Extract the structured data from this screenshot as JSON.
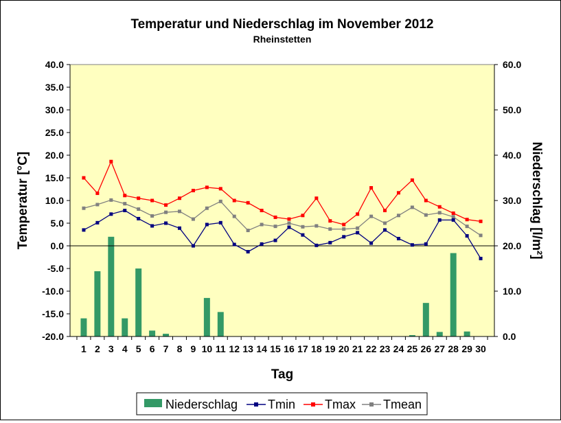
{
  "chart_data": {
    "type": "bar+line",
    "title": "Temperatur und Niederschlag im November 2012",
    "subtitle": "Rheinstetten",
    "xlabel": "Tag",
    "ylabel_left": "Temperatur [°C]",
    "ylabel_right": "Niederschlag [l/m²]",
    "categories": [
      1,
      2,
      3,
      4,
      5,
      6,
      7,
      8,
      9,
      10,
      11,
      12,
      13,
      14,
      15,
      16,
      17,
      18,
      19,
      20,
      21,
      22,
      23,
      24,
      25,
      26,
      27,
      28,
      29,
      30
    ],
    "y_left": {
      "min": -20,
      "max": 40,
      "ticks": [
        "-20.0",
        "-15.0",
        "-10.0",
        "-5.0",
        "0.0",
        "5.0",
        "10.0",
        "15.0",
        "20.0",
        "25.0",
        "30.0",
        "35.0",
        "40.0"
      ]
    },
    "y_right": {
      "min": 0,
      "max": 60,
      "ticks": [
        "0.0",
        "10.0",
        "20.0",
        "30.0",
        "40.0",
        "50.0",
        "60.0"
      ]
    },
    "grid": false,
    "zero_line": true,
    "legend_position": "bottom",
    "plot_background": "#ffffc0",
    "series": [
      {
        "name": "Niederschlag",
        "kind": "bar",
        "axis": "right",
        "color": "#339966",
        "values": [
          4.0,
          14.4,
          22.0,
          4.0,
          15.0,
          1.3,
          0.6,
          0,
          0,
          8.5,
          5.4,
          0,
          0,
          0,
          0,
          0,
          0,
          0,
          0,
          0,
          0,
          0,
          0,
          0,
          0.3,
          7.4,
          1.0,
          18.4,
          1.1,
          0
        ]
      },
      {
        "name": "Tmin",
        "kind": "line",
        "axis": "left",
        "color": "#000080",
        "values": [
          3.5,
          5.1,
          7.0,
          7.8,
          6.0,
          4.4,
          5.0,
          3.9,
          0.0,
          4.7,
          5.1,
          0.3,
          -1.3,
          0.4,
          1.2,
          4.1,
          2.4,
          0.1,
          0.7,
          2.0,
          2.9,
          0.6,
          3.5,
          1.6,
          0.2,
          0.4,
          5.7,
          5.7,
          2.2,
          -2.8
        ]
      },
      {
        "name": "Tmax",
        "kind": "line",
        "axis": "left",
        "color": "#ff0000",
        "values": [
          15.0,
          11.6,
          18.6,
          11.1,
          10.5,
          10.0,
          9.0,
          10.5,
          12.2,
          12.9,
          12.6,
          10.0,
          9.5,
          7.8,
          6.3,
          5.9,
          6.7,
          10.5,
          5.5,
          4.7,
          7.0,
          12.8,
          7.8,
          11.7,
          14.5,
          10.0,
          8.6,
          7.2,
          5.8,
          5.4
        ]
      },
      {
        "name": "Tmean",
        "kind": "line",
        "axis": "left",
        "color": "#808080",
        "values": [
          8.3,
          9.1,
          10.1,
          9.3,
          8.1,
          6.6,
          7.4,
          7.6,
          5.9,
          8.3,
          9.8,
          6.5,
          3.4,
          4.7,
          4.3,
          5.0,
          4.2,
          4.4,
          3.7,
          3.7,
          3.9,
          6.5,
          5.0,
          6.7,
          8.5,
          6.8,
          7.3,
          6.4,
          4.3,
          2.3
        ]
      }
    ]
  }
}
